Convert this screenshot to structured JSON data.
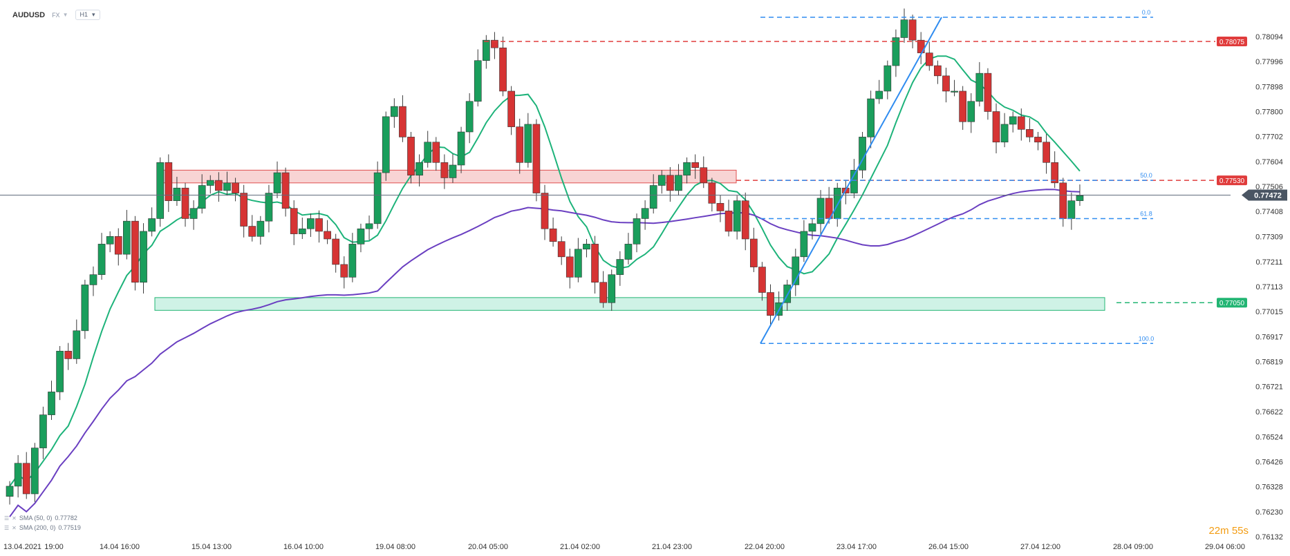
{
  "header": {
    "symbol": "AUDUSD",
    "market": "FX",
    "timeframe": "H1"
  },
  "indicators": [
    {
      "label": "SMA (50, 0)",
      "value": "0.77782",
      "color": "#1db37a"
    },
    {
      "label": "SMA (200, 0)",
      "value": "0.77519",
      "color": "#6a3fc1"
    }
  ],
  "timer": {
    "minutes": "22m",
    "seconds": "55s"
  },
  "chart_data": {
    "type": "candlestick",
    "symbol": "AUDUSD",
    "timeframe": "H1",
    "price_axis_ticks": [
      "0.78094",
      "0.77996",
      "0.77898",
      "0.77800",
      "0.77702",
      "0.77604",
      "0.77506",
      "0.77408",
      "0.77309",
      "0.77211",
      "0.77113",
      "0.77015",
      "0.76917",
      "0.76819",
      "0.76721",
      "0.76622",
      "0.76524",
      "0.76426",
      "0.76328",
      "0.76230",
      "0.76132"
    ],
    "time_axis_labels": [
      "13.04.2021",
      "19:00",
      "14.04 16:00",
      "15.04 13:00",
      "16.04 10:00",
      "19.04 08:00",
      "20.04 05:00",
      "21.04 02:00",
      "21.04 23:00",
      "22.04 20:00",
      "23.04 17:00",
      "26.04 15:00",
      "27.04 12:00",
      "28.04 09:00",
      "29.04 06:00"
    ],
    "current_price": "0.77472",
    "price_labels": [
      {
        "value": "0.78075",
        "color": "#e03c3c"
      },
      {
        "value": "0.77530",
        "color": "#e03c3c"
      },
      {
        "value": "0.77050",
        "color": "#22b573"
      }
    ],
    "fibonacci_levels": [
      {
        "label": "0.0",
        "price": 0.7817
      },
      {
        "label": "50.0",
        "price": 0.7753
      },
      {
        "label": "61.8",
        "price": 0.7738
      },
      {
        "label": "100.0",
        "price": 0.7689
      }
    ],
    "zones": [
      {
        "type": "resistance",
        "from": 0.7752,
        "to": 0.7757,
        "color": "#f6c6c6"
      },
      {
        "type": "support",
        "from": 0.7702,
        "to": 0.7707,
        "color": "#bfeedd"
      }
    ],
    "path": [
      0.7633,
      0.7642,
      0.763,
      0.7648,
      0.7661,
      0.767,
      0.7686,
      0.7683,
      0.7694,
      0.7712,
      0.7716,
      0.7728,
      0.7731,
      0.7724,
      0.7737,
      0.7713,
      0.7733,
      0.7738,
      0.776,
      0.7745,
      0.775,
      0.7738,
      0.7742,
      0.7751,
      0.7753,
      0.7749,
      0.7752,
      0.7748,
      0.7735,
      0.7731,
      0.7737,
      0.7748,
      0.7756,
      0.7742,
      0.7732,
      0.7734,
      0.7738,
      0.7733,
      0.773,
      0.772,
      0.7715,
      0.7728,
      0.7734,
      0.7736,
      0.7756,
      0.7778,
      0.7782,
      0.777,
      0.7755,
      0.776,
      0.7768,
      0.776,
      0.7754,
      0.7759,
      0.7772,
      0.7784,
      0.78,
      0.7808,
      0.7805,
      0.7788,
      0.7774,
      0.776,
      0.7775,
      0.7748,
      0.7734,
      0.7729,
      0.7723,
      0.7715,
      0.7726,
      0.7728,
      0.7713,
      0.7705,
      0.7716,
      0.7722,
      0.7728,
      0.7738,
      0.7742,
      0.7751,
      0.7755,
      0.7749,
      0.7755,
      0.776,
      0.7758,
      0.7752,
      0.7744,
      0.7741,
      0.7733,
      0.7745,
      0.773,
      0.7719,
      0.7709,
      0.77,
      0.7705,
      0.7712,
      0.7723,
      0.7733,
      0.7736,
      0.7746,
      0.7738,
      0.775,
      0.7748,
      0.7757,
      0.777,
      0.7785,
      0.7788,
      0.7798,
      0.7809,
      0.7816,
      0.7808,
      0.7803,
      0.7798,
      0.7794,
      0.7788,
      0.7788,
      0.7776,
      0.7784,
      0.7795,
      0.778,
      0.7768,
      0.7775,
      0.7778,
      0.7773,
      0.777,
      0.7768,
      0.776,
      0.7752,
      0.7738,
      0.7745,
      0.7747
    ]
  }
}
